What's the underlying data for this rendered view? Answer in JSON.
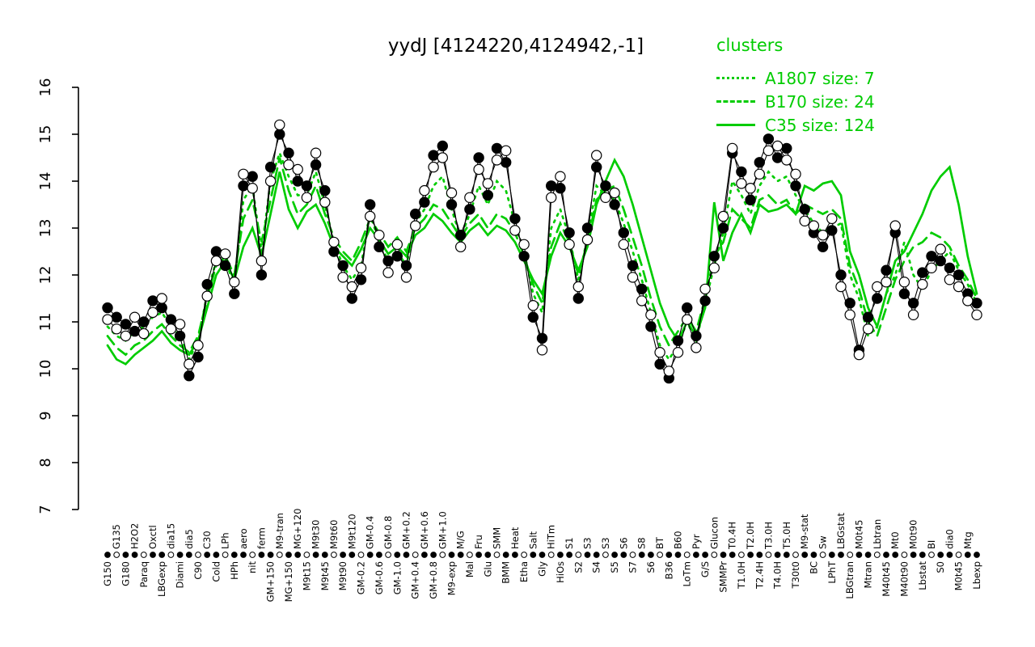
{
  "title": "yydJ [4124220,4124942,-1]",
  "legend": {
    "title": "clusters",
    "entries": [
      {
        "label": "A1807 size: 7",
        "style": "dotted"
      },
      {
        "label": "B170 size: 24",
        "style": "dashed"
      },
      {
        "label": "C35 size: 124",
        "style": "solid"
      }
    ]
  },
  "colors": {
    "cluster_green": "#00cc00",
    "series_black": "#000000",
    "background": "#ffffff"
  },
  "chart_data": {
    "type": "line",
    "title": "yydJ [4124220,4124942,-1]",
    "xlabel": "",
    "ylabel": "",
    "ylim": [
      7,
      16
    ],
    "yticks": [
      7,
      8,
      9,
      10,
      11,
      12,
      13,
      14,
      15,
      16
    ],
    "grid": false,
    "legend_position": "top-right",
    "categories": [
      "G150",
      "G135",
      "G180",
      "H2O2",
      "Paraq",
      "Oxctl",
      "LBGexp",
      "dia15",
      "Diami",
      "dia5",
      "C90",
      "C30",
      "Cold",
      "LPh",
      "HPh",
      "aero",
      "nit",
      "ferm",
      "GM+150",
      "M9-tran",
      "MG+150",
      "MG+120",
      "M9t15",
      "M9t30",
      "M9t45",
      "M9t60",
      "M9t90",
      "M9t120",
      "GM-0.2",
      "GM-0.4",
      "GM-0.6",
      "GM-0.8",
      "GM-1.0",
      "GM+0.2",
      "GM+0.4",
      "GM+0.6",
      "GM+0.8",
      "GM+1.0",
      "M9-exp",
      "M/G",
      "Mal",
      "Fru",
      "Glu",
      "SMM",
      "BMM",
      "Heat",
      "Etha",
      "Salt",
      "Gly",
      "HiTm",
      "HiOs",
      "S1",
      "S2",
      "S3",
      "S4",
      "S3",
      "S5",
      "S6",
      "S7",
      "S8",
      "S6",
      "BT",
      "B36",
      "B60",
      "LoTm",
      "Pyr",
      "G/S",
      "Glucon",
      "SMMPr",
      "T0.4H",
      "T1.0H",
      "T2.0H",
      "T2.4H",
      "T3.0H",
      "T4.0H",
      "T5.0H",
      "T30t0",
      "M9-stat",
      "BC",
      "Sw",
      "LPhT",
      "LBGstat",
      "LBGtran",
      "M0t45",
      "Mtran",
      "Lbtran",
      "M40t45",
      "Mt0",
      "M40t90",
      "M0t90",
      "Lbstat",
      "BI",
      "S0",
      "dia0",
      "M0t45",
      "Mtg",
      "Lbexp"
    ],
    "series": [
      {
        "name": "probe-filled",
        "color": "#000000",
        "marker": "filled-circle",
        "line": "solid",
        "values": [
          11.3,
          11.1,
          10.95,
          10.8,
          11.0,
          11.45,
          11.3,
          11.05,
          10.7,
          9.85,
          10.25,
          11.8,
          12.5,
          12.2,
          11.6,
          13.9,
          14.1,
          12.0,
          14.3,
          15.0,
          14.6,
          14.0,
          13.9,
          14.35,
          13.8,
          12.5,
          12.2,
          11.5,
          11.9,
          13.5,
          12.6,
          12.3,
          12.4,
          12.2,
          13.3,
          13.55,
          14.55,
          14.75,
          13.5,
          12.85,
          13.4,
          14.5,
          13.7,
          14.7,
          14.4,
          13.2,
          12.4,
          11.1,
          10.65,
          13.9,
          13.85,
          12.9,
          11.5,
          13.0,
          14.3,
          13.9,
          13.5,
          12.9,
          12.2,
          11.7,
          10.9,
          10.1,
          9.8,
          10.6,
          11.3,
          10.7,
          11.45,
          12.4,
          13.0,
          14.6,
          14.2,
          13.6,
          14.4,
          14.9,
          14.5,
          14.7,
          13.9,
          13.4,
          12.9,
          12.6,
          12.95,
          12.0,
          11.4,
          10.4,
          11.1,
          11.5,
          12.1,
          12.9,
          11.6,
          11.4,
          12.05,
          12.4,
          12.3,
          12.15,
          12.0,
          11.6,
          11.4
        ]
      },
      {
        "name": "probe-open",
        "color": "#000000",
        "marker": "open-circle",
        "line": "solid",
        "values": [
          11.05,
          10.85,
          10.7,
          11.1,
          10.75,
          11.2,
          11.5,
          10.85,
          10.95,
          10.1,
          10.5,
          11.55,
          12.3,
          12.45,
          11.85,
          14.15,
          13.85,
          12.3,
          14.0,
          15.2,
          14.35,
          14.25,
          13.65,
          14.6,
          13.55,
          12.7,
          11.95,
          11.75,
          12.15,
          13.25,
          12.85,
          12.05,
          12.65,
          11.95,
          13.05,
          13.8,
          14.3,
          14.5,
          13.75,
          12.6,
          13.65,
          14.25,
          13.95,
          14.45,
          14.65,
          12.95,
          12.65,
          11.35,
          10.4,
          13.65,
          14.1,
          12.65,
          11.75,
          12.75,
          14.55,
          13.65,
          13.75,
          12.65,
          11.95,
          11.45,
          11.15,
          10.35,
          9.95,
          10.35,
          11.05,
          10.45,
          11.7,
          12.15,
          13.25,
          14.7,
          13.95,
          13.85,
          14.15,
          14.65,
          14.75,
          14.45,
          14.15,
          13.15,
          13.05,
          12.85,
          13.2,
          11.75,
          11.15,
          10.3,
          10.85,
          11.75,
          11.85,
          13.05,
          11.85,
          11.15,
          11.8,
          12.15,
          12.55,
          11.9,
          11.75,
          11.45,
          11.15
        ]
      },
      {
        "name": "A1807",
        "color": "#00cc00",
        "marker": "none",
        "line": "dotted",
        "size": 7,
        "values": [
          10.9,
          10.7,
          10.6,
          10.8,
          10.9,
          11.1,
          11.2,
          10.9,
          10.7,
          10.2,
          10.6,
          11.6,
          12.3,
          12.3,
          11.8,
          13.6,
          13.9,
          12.5,
          14.0,
          14.6,
          14.1,
          13.7,
          13.7,
          14.2,
          13.5,
          12.7,
          12.2,
          11.9,
          12.2,
          13.3,
          12.7,
          12.3,
          12.5,
          12.2,
          13.1,
          13.4,
          13.9,
          14.1,
          13.4,
          12.8,
          13.3,
          13.9,
          13.5,
          14.0,
          13.8,
          13.1,
          12.5,
          11.6,
          11.2,
          13.0,
          13.4,
          12.8,
          11.9,
          12.8,
          13.9,
          13.7,
          13.6,
          13.1,
          12.5,
          11.9,
          11.2,
          10.5,
          10.2,
          10.5,
          11.0,
          10.6,
          11.4,
          12.2,
          12.9,
          14.0,
          13.7,
          13.3,
          13.9,
          14.2,
          14.0,
          14.1,
          13.7,
          13.4,
          13.1,
          12.9,
          13.0,
          13.1,
          12.0,
          11.5,
          10.7,
          10.9,
          11.6,
          12.0,
          12.7,
          12.0,
          11.7,
          12.1,
          12.3,
          12.5,
          12.1,
          11.8,
          11.4
        ]
      },
      {
        "name": "B170",
        "color": "#00cc00",
        "marker": "none",
        "line": "dashed",
        "size": 24,
        "values": [
          10.7,
          10.45,
          10.3,
          10.5,
          10.6,
          10.8,
          10.95,
          10.7,
          10.5,
          10.35,
          10.7,
          11.5,
          12.2,
          12.4,
          12.0,
          13.2,
          13.6,
          12.7,
          13.6,
          14.5,
          13.8,
          13.3,
          13.5,
          13.9,
          13.3,
          12.8,
          12.5,
          12.3,
          12.7,
          13.2,
          12.9,
          12.6,
          12.8,
          12.5,
          13.0,
          13.2,
          13.5,
          13.4,
          13.1,
          12.8,
          13.1,
          13.3,
          13.0,
          13.3,
          13.2,
          12.9,
          12.4,
          11.8,
          11.4,
          12.6,
          13.1,
          12.7,
          12.0,
          12.7,
          13.6,
          13.8,
          13.9,
          13.4,
          12.8,
          12.2,
          11.5,
          10.9,
          10.5,
          10.8,
          11.1,
          10.8,
          11.5,
          12.4,
          12.7,
          13.4,
          13.2,
          13.0,
          13.6,
          13.7,
          13.5,
          13.6,
          13.3,
          13.5,
          13.4,
          13.3,
          13.4,
          13.2,
          12.2,
          11.7,
          11.0,
          10.7,
          11.3,
          11.9,
          12.3,
          12.6,
          12.7,
          12.9,
          12.8,
          12.6,
          12.2,
          11.9,
          11.5
        ]
      },
      {
        "name": "C35",
        "color": "#00cc00",
        "marker": "none",
        "line": "solid",
        "size": 124,
        "values": [
          10.5,
          10.2,
          10.1,
          10.3,
          10.45,
          10.6,
          10.8,
          10.55,
          10.4,
          10.3,
          10.6,
          11.3,
          12.0,
          12.3,
          11.9,
          12.6,
          13.0,
          12.4,
          13.3,
          14.2,
          13.4,
          13.0,
          13.35,
          13.5,
          13.1,
          12.6,
          12.4,
          12.2,
          12.55,
          13.0,
          12.75,
          12.45,
          12.6,
          12.4,
          12.85,
          13.0,
          13.3,
          13.15,
          12.9,
          12.7,
          12.95,
          13.1,
          12.85,
          13.05,
          12.95,
          12.7,
          12.3,
          11.9,
          11.6,
          12.4,
          12.9,
          12.6,
          12.1,
          12.6,
          13.5,
          14.0,
          14.45,
          14.1,
          13.5,
          12.8,
          12.1,
          11.4,
          10.9,
          10.6,
          11.0,
          10.7,
          11.3,
          13.55,
          12.3,
          12.9,
          13.3,
          12.9,
          13.5,
          13.35,
          13.4,
          13.5,
          13.3,
          13.9,
          13.8,
          13.95,
          14.0,
          13.7,
          12.5,
          12.0,
          11.3,
          10.9,
          11.6,
          12.3,
          12.5,
          12.9,
          13.3,
          13.8,
          14.1,
          14.3,
          13.5,
          12.4,
          11.6
        ]
      }
    ]
  }
}
